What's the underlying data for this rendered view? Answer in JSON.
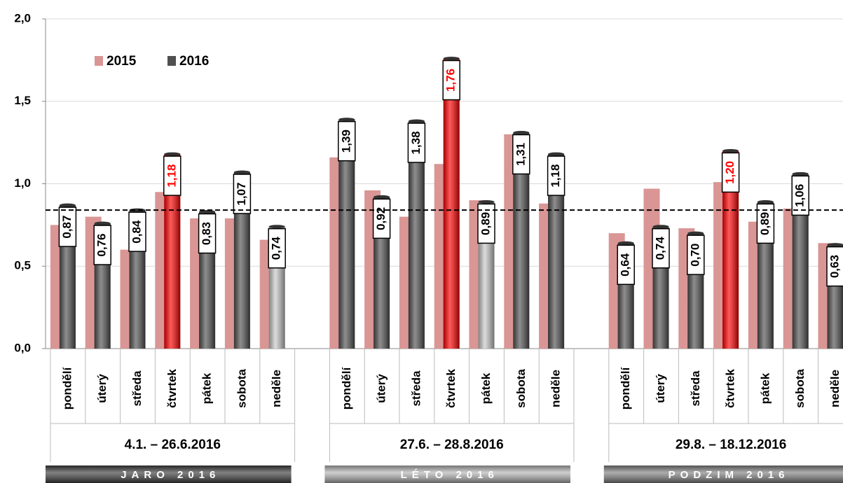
{
  "chart_data": {
    "type": "bar",
    "ylim": [
      0,
      2
    ],
    "yticks": [
      {
        "value": 0,
        "label": "0,0"
      },
      {
        "value": 0.5,
        "label": "0,5"
      },
      {
        "value": 1,
        "label": "1,0"
      },
      {
        "value": 1.5,
        "label": "1,5"
      },
      {
        "value": 2,
        "label": "2,0"
      }
    ],
    "grid": true,
    "reference_line": 0.84,
    "legend": "upper left",
    "groups": [
      {
        "label": "4.1. – 26.6.2016",
        "season": "JARO 2016",
        "season_color": "#3c3c3c",
        "categories": [
          "pondělí",
          "úterý",
          "středa",
          "čtvrtek",
          "pátek",
          "sobota",
          "neděle"
        ]
      },
      {
        "label": "27.6. – 28.8.2016",
        "season": "LÉTO 2016",
        "season_color": "#b4b4b4",
        "categories": [
          "pondělí",
          "úterý",
          "středa",
          "čtvrtek",
          "pátek",
          "sobota",
          "neděle"
        ]
      },
      {
        "label": "29.8. – 18.12.2016",
        "season": "PODZIM 2016",
        "season_color": "#808080",
        "categories": [
          "pondělí",
          "úterý",
          "středa",
          "čtvrtek",
          "pátek",
          "sobota",
          "neděle"
        ]
      }
    ],
    "series": [
      {
        "name": "2015",
        "color": "#d99694",
        "values": [
          0.75,
          0.8,
          0.6,
          0.95,
          0.79,
          0.79,
          0.66,
          1.16,
          0.96,
          0.8,
          1.12,
          0.9,
          1.3,
          0.88,
          0.7,
          0.97,
          0.73,
          1.01,
          0.77,
          0.85,
          0.64
        ]
      },
      {
        "name": "2016",
        "color": "#505050",
        "highlight_color": "#ff0000",
        "colors": [
          "#505050",
          "#505050",
          "#505050",
          "#ff0000",
          "#505050",
          "#505050",
          "#c8c8c8",
          "#505050",
          "#505050",
          "#505050",
          "#ff0000",
          "#c8c8c8",
          "#505050",
          "#505050",
          "#505050",
          "#505050",
          "#505050",
          "#ff0000",
          "#505050",
          "#505050",
          "#505050"
        ],
        "values": [
          0.87,
          0.76,
          0.84,
          1.18,
          0.83,
          1.07,
          0.74,
          1.39,
          0.92,
          1.38,
          1.76,
          0.89,
          1.31,
          1.18,
          0.64,
          0.74,
          0.7,
          1.2,
          0.89,
          1.06,
          0.63
        ],
        "value_labels": [
          "0,87",
          "0,76",
          "0,84",
          "1,18",
          "0,83",
          "1,07",
          "0,74",
          "1,39",
          "0,92",
          "1,38",
          "1,76",
          "0,89",
          "1,31",
          "1,18",
          "0,64",
          "0,74",
          "0,70",
          "1,20",
          "0,89",
          "1,06",
          "0,63"
        ]
      }
    ]
  }
}
